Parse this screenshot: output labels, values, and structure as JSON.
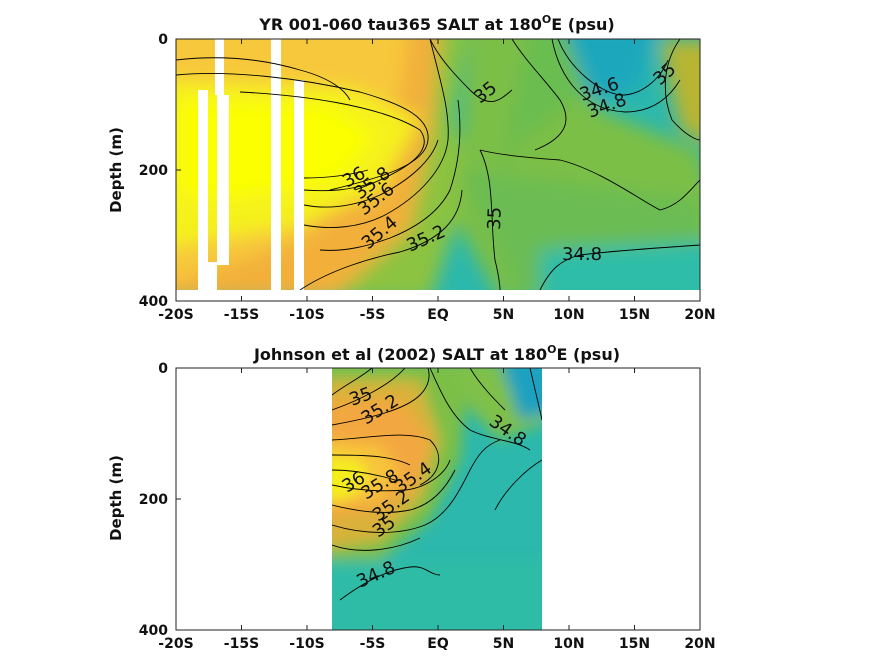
{
  "chart_data": [
    {
      "type": "heatmap",
      "title": "YR 001-060 tau365 SALT at 180°E (psu)",
      "title_main": "YR 001-060 tau365 SALT at 180",
      "title_sup": "O",
      "title_end": "E (psu)",
      "ylabel": "Depth (m)",
      "xlim": [
        -20,
        20
      ],
      "ylim": [
        0,
        400
      ],
      "x_ticks": [
        "-20S",
        "-15S",
        "-10S",
        "-5S",
        "EQ",
        "5N",
        "10N",
        "15N",
        "20N"
      ],
      "y_ticks": [
        "0",
        "200",
        "400"
      ],
      "data_extent": {
        "depth_max": 380
      },
      "contour_labels": [
        "35",
        "34.6",
        "35",
        "34.8",
        "36",
        "35.8",
        "35.6",
        "35.4",
        "35.2",
        "35",
        "34.8"
      ],
      "salinity_range": [
        34.4,
        36.2
      ]
    },
    {
      "type": "heatmap",
      "title": "Johnson et al (2002) SALT at 180°E (psu)",
      "title_main": "Johnson et al (2002) SALT at 180",
      "title_sup": "O",
      "title_end": "E (psu)",
      "ylabel": "Depth (m)",
      "xlim": [
        -20,
        20
      ],
      "ylim": [
        0,
        400
      ],
      "x_ticks": [
        "-20S",
        "-15S",
        "-10S",
        "-5S",
        "EQ",
        "5N",
        "10N",
        "15N",
        "20N"
      ],
      "y_ticks": [
        "0",
        "200",
        "400"
      ],
      "data_extent": {
        "lat_min": -8,
        "lat_max": 8
      },
      "contour_labels": [
        "35",
        "35.2",
        "34.8",
        "36",
        "35.8",
        "35.4",
        "35.2",
        "35",
        "34.8"
      ],
      "salinity_range": [
        34.4,
        36.2
      ]
    }
  ],
  "colors": {
    "high": "#f4f40c",
    "mid": "#9ac53a",
    "low": "#1fb3b5",
    "orange": "#f5b23e"
  }
}
